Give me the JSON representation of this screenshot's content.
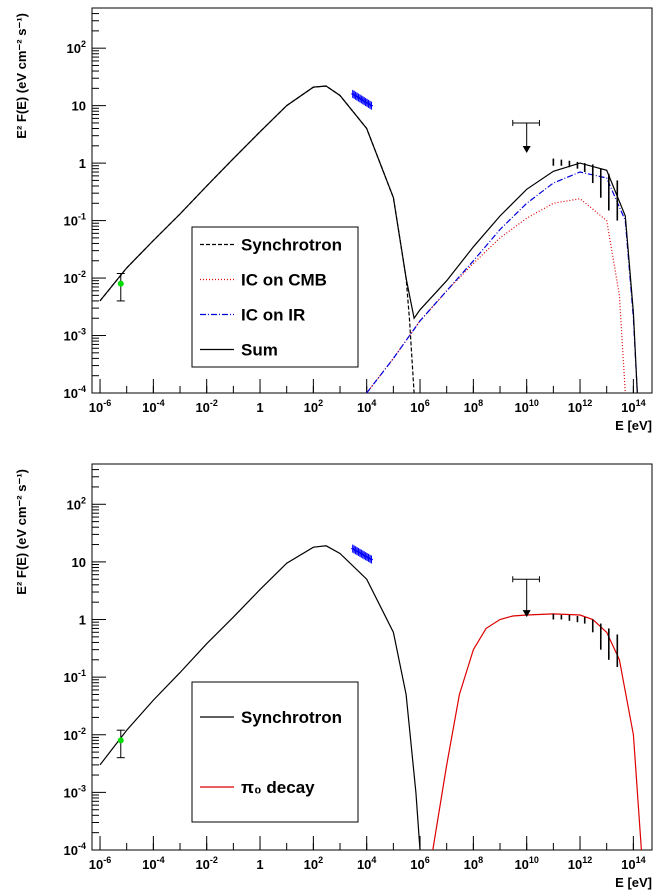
{
  "chart_data": [
    {
      "type": "line",
      "title": "",
      "xlabel": "E [eV]",
      "ylabel": "E² F(E) (eV cm⁻² s⁻¹)",
      "x_scale": "log",
      "y_scale": "log",
      "xlim": [
        5e-07,
        500000000000000.0
      ],
      "ylim": [
        0.0001,
        500
      ],
      "legend_position": "bottom-left",
      "x_ticks": [
        {
          "base": "10",
          "exp": "-6",
          "value": 1e-06
        },
        {
          "base": "10",
          "exp": "-4",
          "value": 0.0001
        },
        {
          "base": "10",
          "exp": "-2",
          "value": 0.01
        },
        {
          "base": "1",
          "exp": "",
          "value": 1
        },
        {
          "base": "10",
          "exp": "2",
          "value": 100.0
        },
        {
          "base": "10",
          "exp": "4",
          "value": 10000.0
        },
        {
          "base": "10",
          "exp": "6",
          "value": 1000000.0
        },
        {
          "base": "10",
          "exp": "8",
          "value": 100000000.0
        },
        {
          "base": "10",
          "exp": "10",
          "value": 10000000000.0
        },
        {
          "base": "10",
          "exp": "12",
          "value": 1000000000000.0
        },
        {
          "base": "10",
          "exp": "14",
          "value": 100000000000000.0
        }
      ],
      "y_ticks": [
        {
          "base": "10",
          "exp": "-4",
          "value": 0.0001
        },
        {
          "base": "10",
          "exp": "-3",
          "value": 0.001
        },
        {
          "base": "10",
          "exp": "-2",
          "value": 0.01
        },
        {
          "base": "10",
          "exp": "-1",
          "value": 0.1
        },
        {
          "base": "1",
          "exp": "",
          "value": 1
        },
        {
          "base": "10",
          "exp": "",
          "value": 10
        },
        {
          "base": "10",
          "exp": "2",
          "value": 100
        }
      ],
      "series": [
        {
          "name": "Synchrotron",
          "color": "#000000",
          "dash": "4,2",
          "x": [
            1e-06,
            1e-05,
            0.0001,
            0.001,
            0.01,
            0.1,
            1,
            10,
            100,
            300,
            1000,
            10000.0,
            100000.0,
            300000.0,
            400000.0,
            600000.0
          ],
          "y": [
            0.004,
            0.015,
            0.045,
            0.13,
            0.4,
            1.2,
            3.5,
            10,
            21,
            22,
            15,
            4,
            0.25,
            0.01,
            0.002,
            0.0001
          ]
        },
        {
          "name": "IC on CMB",
          "color": "#e00000",
          "dash": "1,2",
          "x": [
            10000.0,
            100000.0,
            1000000.0,
            10000000.0,
            100000000.0,
            1000000000.0,
            10000000000.0,
            100000000000.0,
            1000000000000.0,
            10000000000000.0,
            30000000000000.0,
            50000000000000.0
          ],
          "y": [
            0.0001,
            0.0004,
            0.0018,
            0.006,
            0.018,
            0.05,
            0.11,
            0.2,
            0.24,
            0.1,
            0.005,
            0.0001
          ]
        },
        {
          "name": "IC on IR",
          "color": "#0000dd",
          "dash": "6,2,1,2",
          "x": [
            10000.0,
            100000.0,
            1000000.0,
            10000000.0,
            100000000.0,
            1000000000.0,
            10000000000.0,
            100000000000.0,
            1000000000000.0,
            10000000000000.0,
            50000000000000.0,
            100000000000000.0,
            140000000000000.0
          ],
          "y": [
            0.0001,
            0.0004,
            0.0018,
            0.006,
            0.02,
            0.07,
            0.2,
            0.45,
            0.7,
            0.55,
            0.1,
            0.002,
            0.0001
          ]
        },
        {
          "name": "Sum",
          "color": "#000000",
          "dash": "",
          "x": [
            1e-06,
            1e-05,
            0.0001,
            0.001,
            0.01,
            0.1,
            1,
            10,
            100,
            300,
            1000,
            10000.0,
            100000.0,
            300000.0,
            600000.0,
            1000000.0,
            10000000.0,
            100000000.0,
            1000000000.0,
            10000000000.0,
            100000000000.0,
            1000000000000.0,
            10000000000000.0,
            50000000000000.0,
            100000000000000.0,
            140000000000000.0
          ],
          "y": [
            0.004,
            0.015,
            0.045,
            0.13,
            0.4,
            1.2,
            3.5,
            10,
            21,
            22,
            15,
            4,
            0.25,
            0.01,
            0.002,
            0.0028,
            0.009,
            0.035,
            0.12,
            0.35,
            0.72,
            1.0,
            0.75,
            0.12,
            0.0025,
            0.0001
          ]
        }
      ],
      "data_points": {
        "radio": {
          "x": 6e-06,
          "y": 0.008,
          "y_err_low": 0.004,
          "y_err_high": 0.012,
          "color": "#00dd00"
        },
        "xray_start": 3000,
        "xray_end": 15000,
        "xray_y_start": 16,
        "xray_y_end": 10,
        "xray_color": "#0000ff",
        "upper_limit": {
          "x": 10000000000.0,
          "x_low": 3000000000.0,
          "x_high": 30000000000.0,
          "y": 5,
          "arrow_to": 1.5
        },
        "tev": [
          {
            "x": 100000000000.0,
            "y": 1.1,
            "low": 0.9,
            "high": 1.2
          },
          {
            "x": 200000000000.0,
            "y": 1.05,
            "low": 0.9,
            "high": 1.15
          },
          {
            "x": 400000000000.0,
            "y": 1.0,
            "low": 0.85,
            "high": 1.1
          },
          {
            "x": 800000000000.0,
            "y": 0.95,
            "low": 0.8,
            "high": 1.05
          },
          {
            "x": 1500000000000.0,
            "y": 0.9,
            "low": 0.7,
            "high": 1.0
          },
          {
            "x": 3000000000000.0,
            "y": 0.75,
            "low": 0.45,
            "high": 0.95
          },
          {
            "x": 6000000000000.0,
            "y": 0.55,
            "low": 0.25,
            "high": 0.8
          },
          {
            "x": 12000000000000.0,
            "y": 0.4,
            "low": 0.15,
            "high": 0.65
          },
          {
            "x": 25000000000000.0,
            "y": 0.28,
            "low": 0.1,
            "high": 0.5
          }
        ]
      }
    },
    {
      "type": "line",
      "title": "",
      "xlabel": "E [eV]",
      "ylabel": "E² F(E) (eV cm⁻² s⁻¹)",
      "x_scale": "log",
      "y_scale": "log",
      "xlim": [
        5e-07,
        500000000000000.0
      ],
      "ylim": [
        0.0001,
        500
      ],
      "legend_position": "bottom-left",
      "x_ticks": [
        {
          "base": "10",
          "exp": "-6",
          "value": 1e-06
        },
        {
          "base": "10",
          "exp": "-4",
          "value": 0.0001
        },
        {
          "base": "10",
          "exp": "-2",
          "value": 0.01
        },
        {
          "base": "1",
          "exp": "",
          "value": 1
        },
        {
          "base": "10",
          "exp": "2",
          "value": 100.0
        },
        {
          "base": "10",
          "exp": "4",
          "value": 10000.0
        },
        {
          "base": "10",
          "exp": "6",
          "value": 1000000.0
        },
        {
          "base": "10",
          "exp": "8",
          "value": 100000000.0
        },
        {
          "base": "10",
          "exp": "10",
          "value": 10000000000.0
        },
        {
          "base": "10",
          "exp": "12",
          "value": 1000000000000.0
        },
        {
          "base": "10",
          "exp": "14",
          "value": 100000000000000.0
        }
      ],
      "y_ticks": [
        {
          "base": "10",
          "exp": "-4",
          "value": 0.0001
        },
        {
          "base": "10",
          "exp": "-3",
          "value": 0.001
        },
        {
          "base": "10",
          "exp": "-2",
          "value": 0.01
        },
        {
          "base": "10",
          "exp": "-1",
          "value": 0.1
        },
        {
          "base": "1",
          "exp": "",
          "value": 1
        },
        {
          "base": "10",
          "exp": "",
          "value": 10
        },
        {
          "base": "10",
          "exp": "2",
          "value": 100
        }
      ],
      "series": [
        {
          "name": "Synchrotron",
          "color": "#000000",
          "dash": "",
          "x": [
            1e-06,
            1e-05,
            0.0001,
            0.001,
            0.01,
            0.1,
            1,
            10,
            100,
            300,
            1000,
            10000.0,
            100000.0,
            300000.0,
            700000.0,
            1000000.0
          ],
          "y": [
            0.003,
            0.012,
            0.04,
            0.12,
            0.38,
            1.1,
            3.3,
            9.5,
            18,
            19,
            14,
            5,
            0.6,
            0.05,
            0.001,
            0.0001
          ]
        },
        {
          "name": "π₀ decay",
          "color": "#dd0000",
          "dash": "",
          "x": [
            3000000.0,
            10000000.0,
            30000000.0,
            100000000.0,
            300000000.0,
            1000000000.0,
            3000000000.0,
            10000000000.0,
            100000000000.0,
            1000000000000.0,
            3000000000000.0,
            10000000000000.0,
            30000000000000.0,
            100000000000000.0,
            200000000000000.0
          ],
          "y": [
            0.0001,
            0.003,
            0.05,
            0.3,
            0.7,
            1.0,
            1.15,
            1.2,
            1.25,
            1.2,
            1.0,
            0.6,
            0.2,
            0.01,
            0.0001
          ]
        }
      ],
      "data_points": {
        "radio": {
          "x": 6e-06,
          "y": 0.008,
          "y_err_low": 0.004,
          "y_err_high": 0.012,
          "color": "#00dd00"
        },
        "xray_start": 3000,
        "xray_end": 15000,
        "xray_y_start": 17,
        "xray_y_end": 11,
        "xray_color": "#0000ff",
        "upper_limit": {
          "x": 10000000000.0,
          "x_low": 3000000000.0,
          "x_high": 30000000000.0,
          "y": 5,
          "arrow_to": 1.1
        },
        "tev": [
          {
            "x": 100000000000.0,
            "y": 1.15,
            "low": 1.0,
            "high": 1.25
          },
          {
            "x": 200000000000.0,
            "y": 1.12,
            "low": 1.0,
            "high": 1.2
          },
          {
            "x": 400000000000.0,
            "y": 1.1,
            "low": 0.95,
            "high": 1.2
          },
          {
            "x": 800000000000.0,
            "y": 1.05,
            "low": 0.9,
            "high": 1.15
          },
          {
            "x": 1500000000000.0,
            "y": 1.0,
            "low": 0.85,
            "high": 1.1
          },
          {
            "x": 3000000000000.0,
            "y": 0.85,
            "low": 0.6,
            "high": 1.0
          },
          {
            "x": 6000000000000.0,
            "y": 0.6,
            "low": 0.3,
            "high": 0.85
          },
          {
            "x": 12000000000000.0,
            "y": 0.45,
            "low": 0.2,
            "high": 0.7
          },
          {
            "x": 25000000000000.0,
            "y": 0.35,
            "low": 0.15,
            "high": 0.55
          }
        ]
      }
    }
  ]
}
